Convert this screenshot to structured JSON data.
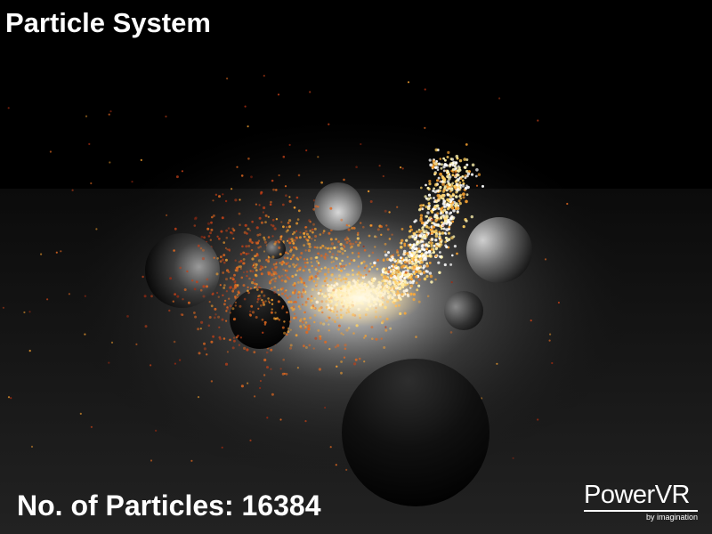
{
  "app": {
    "title": "Particle System"
  },
  "hud": {
    "particle_label": "No. of Particles: 16384"
  },
  "logo": {
    "brand": "PowerVR",
    "tagline": "by imagination"
  },
  "scene": {
    "background_color": "#000000",
    "particle_colors": [
      "#ffffff",
      "#fff3b0",
      "#ffd060",
      "#f5a030",
      "#e06820",
      "#c04018",
      "#a02a10"
    ]
  }
}
